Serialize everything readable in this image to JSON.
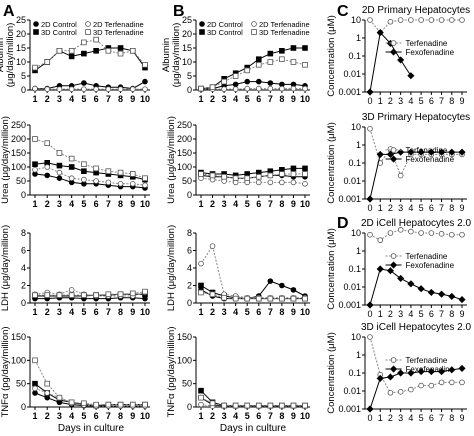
{
  "panel_labels": [
    "A",
    "B",
    "C",
    "D"
  ],
  "shared": {
    "xlabel": "Days in culture",
    "days": [
      1,
      2,
      3,
      4,
      5,
      6,
      7,
      8,
      9,
      10
    ],
    "legend": [
      "2D Control",
      "3D Control",
      "2D Terfenadine",
      "3D Terfenadine"
    ]
  },
  "chart_data": [
    {
      "id": "A1",
      "type": "line",
      "panel": "A",
      "ylabel_lines": [
        "Albumin",
        "(μg/day/million)"
      ],
      "ylim": [
        0,
        25
      ],
      "yticks": [
        0,
        5,
        10,
        15,
        20,
        25
      ],
      "x": [
        1,
        2,
        3,
        4,
        5,
        6,
        7,
        8,
        9,
        10
      ],
      "series": [
        {
          "name": "2D Control",
          "values": [
            0.5,
            0.5,
            1.5,
            1.5,
            2.5,
            1.5,
            1,
            1,
            0.5,
            3
          ]
        },
        {
          "name": "3D Control",
          "values": [
            7,
            10,
            14,
            12,
            13,
            14,
            15,
            15,
            14,
            8
          ]
        },
        {
          "name": "2D Terfenadine",
          "values": [
            0.5,
            0.3,
            0.3,
            0.3,
            0.3,
            0.3,
            0.3,
            0.3,
            0.3,
            0.3
          ]
        },
        {
          "name": "3D Terfenadine",
          "values": [
            8,
            10,
            14,
            14,
            17,
            18,
            14,
            13,
            14,
            9
          ]
        }
      ]
    },
    {
      "id": "B1",
      "type": "line",
      "panel": "B",
      "ylabel_lines": [
        "Albumin",
        "(μg/day/million)"
      ],
      "ylim": [
        0,
        25
      ],
      "yticks": [
        0,
        5,
        10,
        15,
        20,
        25
      ],
      "x": [
        1,
        2,
        3,
        4,
        5,
        6,
        7,
        8,
        9,
        10
      ],
      "series": [
        {
          "name": "2D Control",
          "values": [
            0.3,
            0.5,
            1.5,
            2,
            3,
            3,
            2.5,
            2,
            2,
            1.5
          ]
        },
        {
          "name": "3D Control",
          "values": [
            0.5,
            1,
            4,
            6,
            8,
            11,
            13,
            14,
            15,
            15
          ]
        },
        {
          "name": "2D Terfenadine",
          "values": [
            0.3,
            0.3,
            0.3,
            0.3,
            0.5,
            0.5,
            0.5,
            0.5,
            0.5,
            0.5
          ]
        },
        {
          "name": "3D Terfenadine",
          "values": [
            0.5,
            1,
            3,
            5,
            7,
            9,
            10,
            11,
            10,
            9
          ]
        }
      ]
    },
    {
      "id": "A2",
      "type": "line",
      "panel": "A",
      "ylabel_lines": [
        "Urea (μg/day/million)"
      ],
      "ylim": [
        0,
        250
      ],
      "yticks": [
        0,
        50,
        100,
        150,
        200,
        250
      ],
      "x": [
        1,
        2,
        3,
        4,
        5,
        6,
        7,
        8,
        9,
        10
      ],
      "series": [
        {
          "name": "2D Control",
          "values": [
            75,
            70,
            60,
            45,
            40,
            40,
            35,
            30,
            30,
            25
          ]
        },
        {
          "name": "3D Control",
          "values": [
            110,
            115,
            105,
            100,
            85,
            80,
            75,
            70,
            65,
            55
          ]
        },
        {
          "name": "2D Terfenadine",
          "values": [
            90,
            100,
            80,
            60,
            55,
            50,
            45,
            40,
            40,
            35
          ]
        },
        {
          "name": "3D Terfenadine",
          "values": [
            200,
            185,
            150,
            130,
            110,
            95,
            85,
            80,
            75,
            60
          ]
        }
      ]
    },
    {
      "id": "B2",
      "type": "line",
      "panel": "B",
      "ylabel_lines": [
        "Urea (μg/day/million)"
      ],
      "ylim": [
        0,
        250
      ],
      "yticks": [
        0,
        50,
        100,
        150,
        200,
        250
      ],
      "x": [
        1,
        2,
        3,
        4,
        5,
        6,
        7,
        8,
        9,
        10
      ],
      "series": [
        {
          "name": "2D Control",
          "values": [
            70,
            65,
            65,
            60,
            60,
            65,
            70,
            70,
            65,
            65
          ]
        },
        {
          "name": "3D Control",
          "values": [
            80,
            75,
            75,
            70,
            75,
            80,
            85,
            90,
            95,
            95
          ]
        },
        {
          "name": "2D Terfenadine",
          "values": [
            60,
            55,
            50,
            45,
            45,
            45,
            45,
            45,
            45,
            40
          ]
        },
        {
          "name": "3D Terfenadine",
          "values": [
            75,
            70,
            65,
            60,
            60,
            65,
            70,
            75,
            75,
            75
          ]
        }
      ]
    },
    {
      "id": "A3",
      "type": "line",
      "panel": "A",
      "ylabel_lines": [
        "LDH (μg/day/million)"
      ],
      "ylim": [
        0,
        8
      ],
      "yticks": [
        0,
        2,
        4,
        6,
        8
      ],
      "x": [
        1,
        2,
        3,
        4,
        5,
        6,
        7,
        8,
        9,
        10
      ],
      "series": [
        {
          "name": "2D Control",
          "values": [
            0.5,
            0.5,
            0.6,
            0.6,
            0.5,
            0.5,
            0.5,
            0.6,
            0.6,
            0.5
          ]
        },
        {
          "name": "3D Control",
          "values": [
            0.8,
            0.8,
            0.8,
            0.8,
            0.8,
            0.9,
            0.9,
            1.0,
            1.0,
            1.0
          ]
        },
        {
          "name": "2D Terfenadine",
          "values": [
            1.0,
            1.2,
            1.0,
            1.5,
            1.0,
            0.8,
            0.8,
            0.8,
            0.8,
            1.2
          ]
        },
        {
          "name": "3D Terfenadine",
          "values": [
            0.9,
            0.9,
            0.9,
            0.9,
            0.9,
            0.9,
            1.0,
            1.0,
            1.1,
            1.3
          ]
        }
      ]
    },
    {
      "id": "B3",
      "type": "line",
      "panel": "B",
      "ylabel_lines": [
        "LDH (μg/day/million)"
      ],
      "ylim": [
        0,
        8
      ],
      "yticks": [
        0,
        2,
        4,
        6,
        8
      ],
      "x": [
        1,
        2,
        3,
        4,
        5,
        6,
        7,
        8,
        9,
        10
      ],
      "series": [
        {
          "name": "2D Control",
          "values": [
            1.5,
            0.8,
            0.5,
            0.5,
            0.5,
            0.8,
            2.5,
            2.0,
            1.5,
            0.8
          ]
        },
        {
          "name": "3D Control",
          "values": [
            2.0,
            1.2,
            0.8,
            0.6,
            0.5,
            0.5,
            0.5,
            0.5,
            0.5,
            0.5
          ]
        },
        {
          "name": "2D Terfenadine",
          "values": [
            4.5,
            6.5,
            1.0,
            0.8,
            0.6,
            0.6,
            0.6,
            0.6,
            0.6,
            0.6
          ]
        },
        {
          "name": "3D Terfenadine",
          "values": [
            1.2,
            1.0,
            0.6,
            0.5,
            0.5,
            0.5,
            0.5,
            0.5,
            0.5,
            0.5
          ]
        }
      ]
    },
    {
      "id": "A4",
      "type": "line",
      "panel": "A",
      "ylabel_lines": [
        "TNFα (pg/day/million)"
      ],
      "ylim": [
        0,
        150
      ],
      "yticks": [
        0,
        50,
        100,
        150
      ],
      "x": [
        1,
        2,
        3,
        4,
        5,
        6,
        7,
        8,
        9,
        10
      ],
      "series": [
        {
          "name": "2D Control",
          "values": [
            30,
            20,
            10,
            5,
            3,
            2,
            2,
            2,
            2,
            2
          ]
        },
        {
          "name": "3D Control",
          "values": [
            50,
            30,
            15,
            10,
            5,
            3,
            5,
            5,
            5,
            5
          ]
        },
        {
          "name": "2D Terfenadine",
          "values": [
            40,
            30,
            20,
            8,
            4,
            2,
            2,
            2,
            2,
            2
          ]
        },
        {
          "name": "3D Terfenadine",
          "values": [
            100,
            50,
            20,
            10,
            8,
            5,
            5,
            5,
            5,
            5
          ]
        }
      ]
    },
    {
      "id": "B4",
      "type": "line",
      "panel": "B",
      "ylabel_lines": [
        "TNFα (pg/day/million)"
      ],
      "ylim": [
        0,
        150
      ],
      "yticks": [
        0,
        50,
        100,
        150
      ],
      "x": [
        1,
        2,
        3,
        4,
        5,
        6,
        7,
        8,
        9,
        10
      ],
      "series": [
        {
          "name": "2D Control",
          "values": [
            20,
            5,
            2,
            2,
            2,
            2,
            2,
            2,
            2,
            2
          ]
        },
        {
          "name": "3D Control",
          "values": [
            35,
            10,
            3,
            3,
            3,
            3,
            3,
            3,
            3,
            3
          ]
        },
        {
          "name": "2D Terfenadine",
          "values": [
            5,
            2,
            2,
            2,
            2,
            2,
            2,
            2,
            2,
            2
          ]
        },
        {
          "name": "3D Terfenadine",
          "values": [
            20,
            8,
            3,
            3,
            3,
            3,
            3,
            3,
            3,
            3
          ]
        }
      ]
    },
    {
      "id": "C1",
      "type": "line",
      "panel": "C",
      "title": "2D Primary Hepatocytes",
      "ylabel": "Concentration (μM)",
      "yscale": "log",
      "ylim": [
        0.001,
        10
      ],
      "yticks": [
        0.001,
        0.01,
        0.1,
        1,
        10
      ],
      "ytick_labels": [
        "0.001",
        "0.01",
        "0.1",
        "1",
        "10"
      ],
      "x": [
        0,
        1,
        2,
        3,
        4,
        5,
        6,
        7,
        8,
        9
      ],
      "series": [
        {
          "name": "Terfenadine",
          "x": [
            0,
            1,
            2,
            3,
            4,
            5,
            6,
            7,
            8,
            9
          ],
          "values": [
            10,
            2,
            8,
            10,
            10,
            10,
            10,
            10,
            10,
            10
          ]
        },
        {
          "name": "Fexofenadine",
          "x": [
            0,
            1,
            2,
            3,
            4
          ],
          "values": [
            0.001,
            2,
            0.5,
            0.06,
            0.008
          ]
        }
      ]
    },
    {
      "id": "C2",
      "type": "line",
      "panel": "C",
      "title": "3D Primary Hepatocytes",
      "ylabel": "Concentration (μM)",
      "yscale": "log",
      "ylim": [
        0.001,
        10
      ],
      "yticks": [
        0.001,
        0.01,
        0.1,
        1,
        10
      ],
      "ytick_labels": [
        "0.001",
        "0.01",
        "0.1",
        "1",
        "10"
      ],
      "x": [
        0,
        1,
        2,
        3,
        4,
        5,
        6,
        7,
        8,
        9
      ],
      "series": [
        {
          "name": "Terfenadine",
          "x": [
            0,
            1,
            2,
            3,
            4,
            5,
            6,
            7,
            8,
            9
          ],
          "values": [
            8,
            0.1,
            0.6,
            0.02,
            0.3,
            0.3,
            0.3,
            0.3,
            0.3,
            0.3
          ]
        },
        {
          "name": "Fexofenadine",
          "x": [
            0,
            1,
            2,
            3,
            4,
            5,
            6,
            7,
            8,
            9
          ],
          "values": [
            0.001,
            0.3,
            0.3,
            0.4,
            0.4,
            0.4,
            0.4,
            0.4,
            0.4,
            0.4
          ]
        }
      ]
    },
    {
      "id": "D1",
      "type": "line",
      "panel": "D",
      "title": "2D iCell Hepatocytes 2.0",
      "ylabel": "Concentration (μM)",
      "yscale": "log",
      "ylim": [
        0.001,
        10
      ],
      "yticks": [
        0.001,
        0.01,
        0.1,
        1,
        10
      ],
      "ytick_labels": [
        "0.001",
        "0.01",
        "0.1",
        "1",
        "10"
      ],
      "x": [
        0,
        1,
        2,
        3,
        4,
        5,
        6,
        7,
        8,
        9
      ],
      "series": [
        {
          "name": "Terfenadine",
          "x": [
            0,
            1,
            2,
            3,
            4,
            5,
            6,
            7,
            8,
            9
          ],
          "values": [
            8,
            4,
            10,
            15,
            12,
            10,
            10,
            9,
            8,
            8
          ]
        },
        {
          "name": "Fexofenadine",
          "x": [
            0,
            1,
            2,
            3,
            4,
            5,
            6,
            7,
            8,
            9
          ],
          "values": [
            0.001,
            0.1,
            0.08,
            0.03,
            0.015,
            0.008,
            0.005,
            0.004,
            0.003,
            0.002
          ]
        }
      ]
    },
    {
      "id": "D2",
      "type": "line",
      "panel": "D",
      "title": "3D iCell Hepatocytes 2.0",
      "ylabel": "Concentration (μM)",
      "yscale": "log",
      "ylim": [
        0.001,
        10
      ],
      "yticks": [
        0.001,
        0.01,
        0.1,
        1,
        10
      ],
      "ytick_labels": [
        "0.001",
        "0.01",
        "0.1",
        "1",
        "10"
      ],
      "x": [
        0,
        1,
        2,
        3,
        4,
        5,
        6,
        7,
        8,
        9
      ],
      "series": [
        {
          "name": "Terfenadine",
          "x": [
            0,
            1,
            2,
            3,
            4,
            5,
            6,
            7,
            8,
            9
          ],
          "values": [
            10,
            0.08,
            0.008,
            0.009,
            0.012,
            0.02,
            0.02,
            0.03,
            0.03,
            0.03
          ]
        },
        {
          "name": "Fexofenadine",
          "x": [
            0,
            1,
            2,
            3,
            4,
            5,
            6,
            7,
            8,
            9
          ],
          "values": [
            0.001,
            0.05,
            0.06,
            0.1,
            0.1,
            0.12,
            0.12,
            0.12,
            0.15,
            0.18
          ]
        }
      ]
    }
  ]
}
